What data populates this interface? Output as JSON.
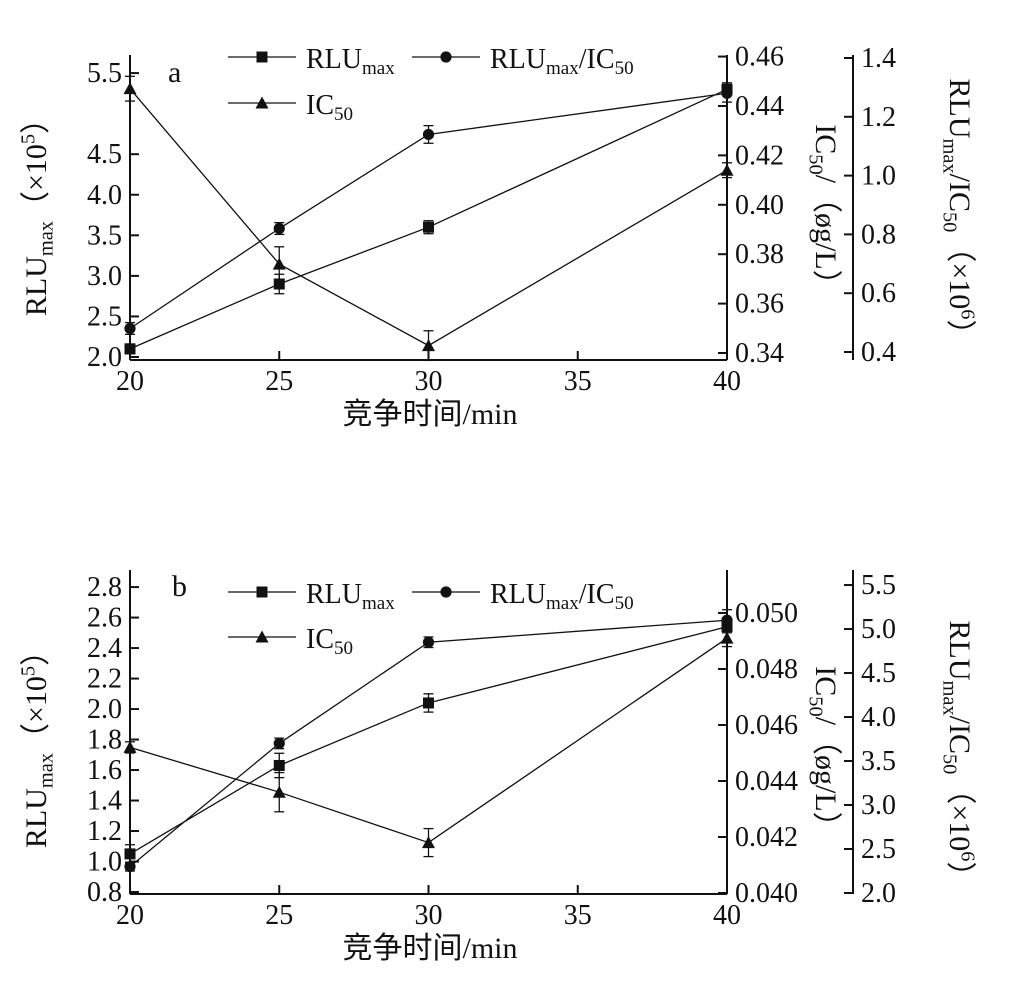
{
  "figure": {
    "background": "#ffffff",
    "ink": "#111111",
    "xlabel": "竞争时间/min"
  },
  "chart_data": [
    {
      "id": "a",
      "type": "line",
      "panel_label": "a",
      "xlabel": "竞争时间/min",
      "x_axis": {
        "range": [
          20,
          40
        ],
        "ticks": [
          20,
          25,
          30,
          35,
          40
        ],
        "tick_labels": [
          "20",
          "25",
          "30",
          "35",
          "40"
        ]
      },
      "axes": {
        "left": {
          "label_text": "RLU_max（×10^5）",
          "label_parts": [
            {
              "t": "RLU"
            },
            {
              "t": "max",
              "s": "sub"
            },
            {
              "t": "（×10"
            },
            {
              "t": "5",
              "s": "sup"
            },
            {
              "t": "）"
            }
          ],
          "range": [
            1.963,
            5.723
          ],
          "ticks": [
            2.0,
            2.5,
            3.0,
            3.5,
            4.0,
            4.5,
            5.5
          ],
          "tick_labels": [
            "2.0",
            "2.5",
            "3.0",
            "3.5",
            "4.0",
            "4.5",
            "5.5"
          ]
        },
        "right1": {
          "label_text": "IC_50/（øg/L）",
          "label_parts": [
            {
              "t": "IC"
            },
            {
              "t": "50",
              "s": "sub"
            },
            {
              "t": "/（øg/L）"
            }
          ],
          "range": [
            0.33717,
            0.46063
          ],
          "ticks": [
            0.34,
            0.36,
            0.38,
            0.4,
            0.42,
            0.44,
            0.46
          ],
          "tick_labels": [
            "0.34",
            "0.36",
            "0.38",
            "0.40",
            "0.42",
            "0.44",
            "0.46"
          ]
        },
        "right2": {
          "label_text": "RLU_max/IC_50（×10^6）",
          "label_parts": [
            {
              "t": "RLU"
            },
            {
              "t": "max",
              "s": "sub"
            },
            {
              "t": "/IC"
            },
            {
              "t": "50",
              "s": "sub"
            },
            {
              "t": "（×10"
            },
            {
              "t": "6",
              "s": "sup"
            },
            {
              "t": "）"
            }
          ],
          "range": [
            0.3728,
            1.4102
          ],
          "ticks": [
            0.4,
            0.6,
            0.8,
            1.0,
            1.2,
            1.4
          ],
          "tick_labels": [
            "0.4",
            "0.6",
            "0.8",
            "1.0",
            "1.2",
            "1.4"
          ]
        }
      },
      "series": [
        {
          "name": "RLU_max",
          "marker": "square",
          "axis": "left",
          "label_parts": [
            {
              "t": "RLU"
            },
            {
              "t": "max",
              "s": "sub"
            }
          ],
          "x": [
            20,
            25,
            30,
            40
          ],
          "y": [
            2.1,
            2.9,
            3.6,
            5.3
          ],
          "yerr": [
            0.06,
            0.12,
            0.08,
            0.08
          ]
        },
        {
          "name": "RLU_max/IC_50",
          "marker": "circle",
          "axis": "right2",
          "label_parts": [
            {
              "t": "RLU"
            },
            {
              "t": "max",
              "s": "sub"
            },
            {
              "t": "/IC"
            },
            {
              "t": "50",
              "s": "sub"
            }
          ],
          "x": [
            20,
            25,
            30,
            40
          ],
          "y": [
            0.48,
            0.82,
            1.14,
            1.28
          ],
          "yerr": [
            0.02,
            0.02,
            0.03,
            0.03
          ]
        },
        {
          "name": "IC_50",
          "marker": "triangle",
          "axis": "right1",
          "label_parts": [
            {
              "t": "IC"
            },
            {
              "t": "50",
              "s": "sub"
            }
          ],
          "x": [
            20,
            25,
            30,
            40
          ],
          "y": [
            0.447,
            0.376,
            0.343,
            0.414
          ],
          "yerr": [
            0.005,
            0.007,
            0.006,
            0.003
          ]
        }
      ],
      "legend_position": "top-inside"
    },
    {
      "id": "b",
      "type": "line",
      "panel_label": "b",
      "xlabel": "竞争时间/min",
      "x_axis": {
        "range": [
          20,
          40
        ],
        "ticks": [
          20,
          25,
          30,
          35,
          40
        ],
        "tick_labels": [
          "20",
          "25",
          "30",
          "35",
          "40"
        ]
      },
      "axes": {
        "left": {
          "label_text": "RLU_max（×10^5）",
          "label_parts": [
            {
              "t": "RLU"
            },
            {
              "t": "max",
              "s": "sub"
            },
            {
              "t": "（×10"
            },
            {
              "t": "5",
              "s": "sup"
            },
            {
              "t": "）"
            }
          ],
          "range": [
            0.787,
            2.912
          ],
          "ticks": [
            0.8,
            1.0,
            1.2,
            1.4,
            1.6,
            1.8,
            2.0,
            2.2,
            2.4,
            2.6,
            2.8
          ],
          "tick_labels": [
            "0.8",
            "1.0",
            "1.2",
            "1.4",
            "1.6",
            "1.8",
            "2.0",
            "2.2",
            "2.4",
            "2.6",
            "2.8"
          ]
        },
        "right1": {
          "label_text": "IC_50/（øg/L）",
          "label_parts": [
            {
              "t": "IC"
            },
            {
              "t": "50",
              "s": "sub"
            },
            {
              "t": "/（øg/L）"
            }
          ],
          "range": [
            0.039964,
            0.051535
          ],
          "ticks": [
            0.04,
            0.042,
            0.044,
            0.046,
            0.048,
            0.05
          ],
          "tick_labels": [
            "0.040",
            "0.042",
            "0.044",
            "0.046",
            "0.048",
            "0.050"
          ]
        },
        "right2": {
          "label_text": "RLU_max/IC_50（×10^6）",
          "label_parts": [
            {
              "t": "RLU"
            },
            {
              "t": "max",
              "s": "sub"
            },
            {
              "t": "/IC"
            },
            {
              "t": "50",
              "s": "sub"
            },
            {
              "t": "（×10"
            },
            {
              "t": "6",
              "s": "sup"
            },
            {
              "t": "）"
            }
          ],
          "range": [
            1.9886,
            5.671
          ],
          "ticks": [
            2.0,
            2.5,
            3.0,
            3.5,
            4.0,
            4.5,
            5.0,
            5.5
          ],
          "tick_labels": [
            "2.0",
            "2.5",
            "3.0",
            "3.5",
            "4.0",
            "4.5",
            "5.0",
            "5.5"
          ]
        }
      },
      "series": [
        {
          "name": "RLU_max",
          "marker": "square",
          "axis": "left",
          "label_parts": [
            {
              "t": "RLU"
            },
            {
              "t": "max",
              "s": "sub"
            }
          ],
          "x": [
            20,
            25,
            30,
            40
          ],
          "y": [
            1.05,
            1.63,
            2.04,
            2.54
          ],
          "yerr": [
            0.06,
            0.08,
            0.06,
            0.04
          ]
        },
        {
          "name": "RLU_max/IC_50",
          "marker": "circle",
          "axis": "right2",
          "label_parts": [
            {
              "t": "RLU"
            },
            {
              "t": "max",
              "s": "sub"
            },
            {
              "t": "/IC"
            },
            {
              "t": "50",
              "s": "sub"
            }
          ],
          "x": [
            20,
            25,
            30,
            40
          ],
          "y": [
            2.3,
            3.7,
            4.85,
            5.1
          ],
          "yerr": [
            0.05,
            0.06,
            0.06,
            0.12
          ]
        },
        {
          "name": "IC_50",
          "marker": "triangle",
          "axis": "right1",
          "label_parts": [
            {
              "t": "IC"
            },
            {
              "t": "50",
              "s": "sub"
            }
          ],
          "x": [
            20,
            25,
            30,
            40
          ],
          "y": [
            0.0452,
            0.0436,
            0.0418,
            0.0491
          ],
          "yerr": [
            0.0002,
            0.0007,
            0.0005,
            0.0003
          ]
        }
      ],
      "legend_position": "top-inside"
    }
  ]
}
